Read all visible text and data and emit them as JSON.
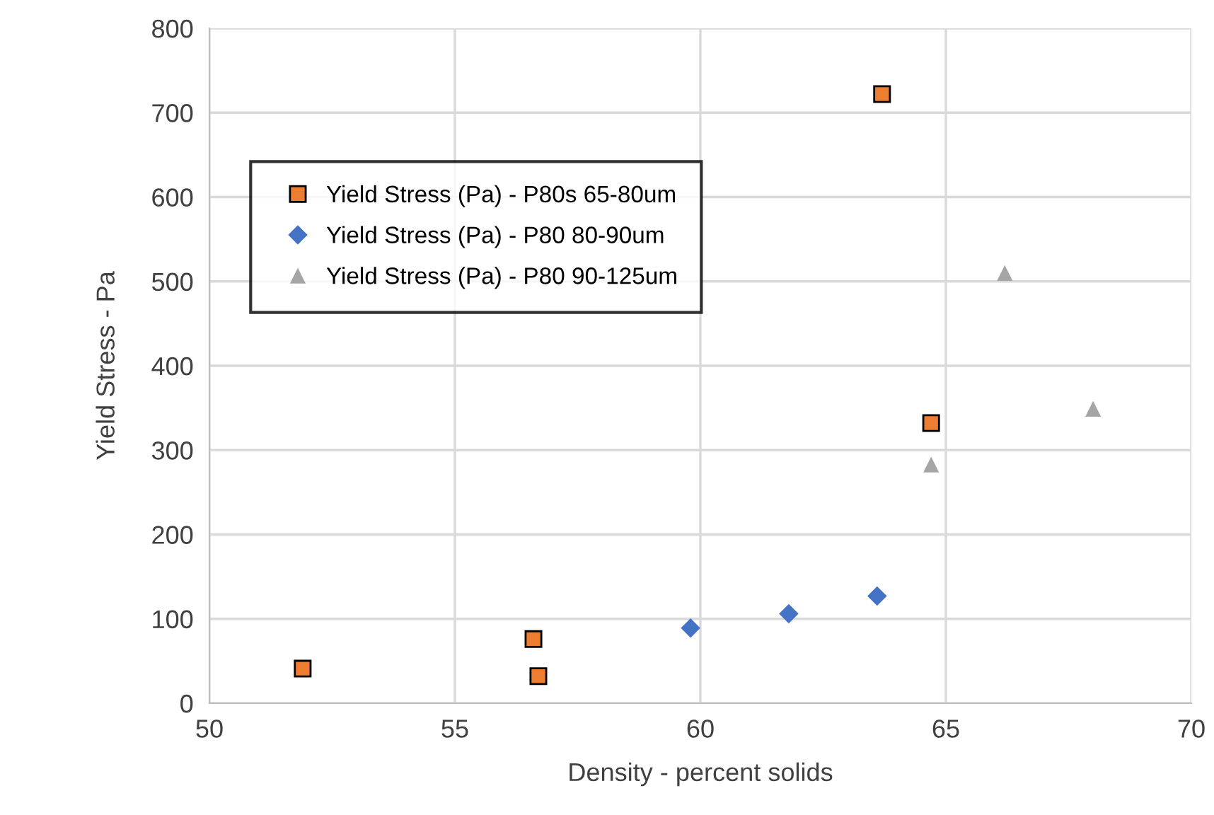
{
  "chart_data": {
    "type": "scatter",
    "xlabel": "Density - percent solids",
    "ylabel": "Yield Stress - Pa",
    "xlim": [
      50,
      70
    ],
    "xticks": [
      50,
      55,
      60,
      65,
      70
    ],
    "ylim": [
      0,
      800
    ],
    "yticks": [
      0,
      100,
      200,
      300,
      400,
      500,
      600,
      700,
      800
    ],
    "grid": true,
    "legend": "top left",
    "series": [
      {
        "name": "Yield Stress (Pa) - P80s 65-80um",
        "color": "#ed7d31",
        "marker": "square",
        "x": [
          51.9,
          56.6,
          56.7,
          63.7,
          64.7
        ],
        "values": [
          41,
          76,
          32,
          722,
          332
        ]
      },
      {
        "name": "Yield Stress (Pa) - P80 80-90um",
        "color": "#4472c4",
        "marker": "diamond",
        "x": [
          59.8,
          61.8,
          63.6
        ],
        "values": [
          89,
          106,
          127
        ]
      },
      {
        "name": "Yield Stress (Pa) - P80 90-125um",
        "color": "#a5a5a5",
        "marker": "triangle",
        "x": [
          64.7,
          66.2,
          68.0
        ],
        "values": [
          283,
          510,
          349
        ]
      }
    ]
  }
}
